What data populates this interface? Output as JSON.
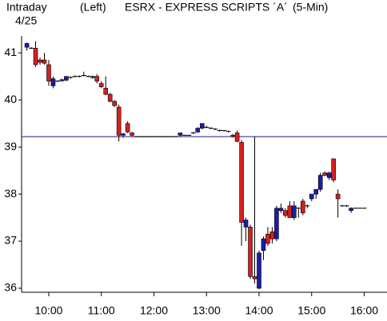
{
  "chart_data": {
    "type": "candlestick",
    "label": "Intraday",
    "date": "4/25",
    "axis_side": "(Left)",
    "title": "ESRX - EXPRESS SCRIPTS ´A´",
    "interval": "(5-Min)",
    "up_color": "#1c1ca8",
    "down_color": "#d42020",
    "reference_line": 39.22,
    "reference_color": "#1a1a8a",
    "x": [
      575,
      580,
      585,
      590,
      595,
      600,
      605,
      610,
      615,
      620,
      625,
      630,
      635,
      640,
      645,
      650,
      655,
      660,
      665,
      670,
      675,
      680,
      685,
      690,
      695,
      700,
      705,
      710,
      715,
      720,
      725,
      730,
      735,
      740,
      745,
      750,
      755,
      760,
      765,
      770,
      775,
      780,
      785,
      790,
      795,
      800,
      805,
      810,
      815,
      820,
      825,
      830,
      835,
      840,
      845,
      850,
      855,
      860,
      865,
      870,
      875,
      880,
      885,
      890,
      895,
      900,
      905,
      910,
      915,
      920,
      925,
      930,
      935,
      940,
      945,
      950,
      955,
      960
    ],
    "open": [
      41.12,
      41.1,
      41.1,
      40.85,
      40.85,
      40.75,
      40.3,
      40.4,
      40.42,
      40.42,
      40.48,
      40.5,
      40.5,
      40.52,
      40.5,
      40.5,
      40.5,
      40.35,
      40.25,
      40.12,
      39.97,
      39.85,
      39.25,
      39.5,
      39.3,
      39.22,
      39.22,
      39.22,
      39.22,
      39.22,
      39.22,
      39.22,
      39.22,
      39.22,
      39.22,
      39.25,
      39.25,
      39.25,
      39.3,
      39.32,
      39.4,
      39.42,
      39.4,
      39.38,
      39.35,
      39.35,
      39.33,
      39.25,
      39.3,
      39.1,
      37.3,
      37.3,
      36.25,
      36.0,
      36.8,
      37.15,
      37.2,
      37.05,
      37.65,
      37.65,
      37.75,
      37.5,
      37.7,
      37.85,
      37.75,
      37.9,
      38.0,
      38.1,
      38.45,
      38.35,
      38.75,
      38.0,
      37.75,
      37.75,
      37.65,
      37.7,
      37.7,
      37.7
    ],
    "high": [
      41.22,
      41.12,
      41.25,
      40.9,
      41.0,
      40.85,
      40.5,
      40.42,
      40.45,
      40.5,
      40.5,
      40.52,
      40.52,
      40.6,
      40.52,
      40.52,
      40.55,
      40.4,
      40.5,
      40.15,
      40.0,
      39.9,
      39.3,
      39.55,
      39.32,
      39.23,
      39.23,
      39.23,
      39.23,
      39.23,
      39.23,
      39.23,
      39.23,
      39.23,
      39.23,
      39.3,
      39.26,
      39.26,
      39.32,
      39.42,
      39.5,
      39.45,
      39.42,
      39.4,
      39.37,
      39.36,
      39.35,
      39.28,
      39.35,
      39.15,
      37.5,
      37.35,
      39.22,
      36.8,
      37.1,
      37.3,
      37.3,
      37.75,
      37.8,
      37.7,
      37.85,
      37.85,
      37.72,
      37.9,
      37.78,
      38.0,
      38.1,
      38.45,
      38.48,
      38.48,
      38.75,
      38.1,
      37.77,
      37.77,
      37.72,
      37.71,
      37.71,
      37.71
    ],
    "low": [
      41.05,
      41.08,
      40.7,
      40.75,
      40.75,
      40.3,
      40.25,
      40.38,
      40.4,
      40.4,
      40.45,
      40.48,
      40.48,
      40.5,
      40.48,
      40.45,
      40.35,
      40.25,
      40.1,
      39.95,
      39.85,
      39.12,
      39.2,
      39.3,
      39.22,
      39.21,
      39.21,
      39.21,
      39.21,
      39.21,
      39.21,
      39.21,
      39.21,
      39.21,
      39.21,
      39.22,
      39.24,
      39.24,
      39.28,
      39.3,
      39.38,
      39.4,
      39.38,
      39.36,
      39.33,
      39.33,
      39.31,
      39.2,
      39.1,
      36.9,
      37.0,
      36.2,
      36.1,
      35.98,
      36.6,
      36.9,
      36.95,
      37.0,
      37.6,
      37.5,
      37.5,
      37.45,
      37.5,
      37.55,
      37.7,
      37.85,
      37.9,
      38.05,
      38.38,
      38.3,
      38.25,
      37.5,
      37.73,
      37.73,
      37.6,
      37.69,
      37.69,
      37.69
    ],
    "close": [
      41.2,
      41.1,
      40.75,
      40.8,
      40.78,
      40.4,
      40.45,
      40.4,
      40.43,
      40.5,
      40.48,
      40.5,
      40.5,
      40.52,
      40.5,
      40.48,
      40.4,
      40.28,
      40.12,
      39.97,
      39.88,
      39.25,
      39.28,
      39.32,
      39.25,
      39.22,
      39.22,
      39.22,
      39.22,
      39.22,
      39.22,
      39.22,
      39.22,
      39.22,
      39.22,
      39.3,
      39.25,
      39.25,
      39.3,
      39.4,
      39.5,
      39.42,
      39.4,
      39.38,
      39.35,
      39.35,
      39.33,
      39.22,
      39.12,
      37.4,
      37.45,
      36.25,
      36.2,
      36.75,
      37.05,
      36.95,
      37.05,
      37.7,
      37.7,
      37.55,
      37.5,
      37.75,
      37.7,
      37.6,
      37.75,
      38.0,
      38.1,
      38.4,
      38.4,
      38.45,
      38.3,
      37.9,
      37.75,
      37.75,
      37.7,
      37.7,
      37.7,
      37.7
    ],
    "xlim": [
      569,
      986
    ],
    "ylim": [
      35.915,
      41.36
    ],
    "yticks": [
      36,
      37,
      38,
      39,
      40,
      41
    ],
    "xticks": [
      {
        "value": 600,
        "label": "10:00"
      },
      {
        "value": 660,
        "label": "11:00"
      },
      {
        "value": 720,
        "label": "12:00"
      },
      {
        "value": 780,
        "label": "13:00"
      },
      {
        "value": 840,
        "label": "14:00"
      },
      {
        "value": 900,
        "label": "15:00"
      },
      {
        "value": 960,
        "label": "16:00"
      }
    ]
  }
}
